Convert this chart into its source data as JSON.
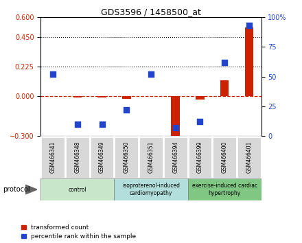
{
  "title": "GDS3596 / 1458500_at",
  "samples": [
    "GSM466341",
    "GSM466348",
    "GSM466349",
    "GSM466350",
    "GSM466351",
    "GSM466394",
    "GSM466399",
    "GSM466400",
    "GSM466401"
  ],
  "transformed_count": [
    0.003,
    -0.01,
    -0.008,
    -0.02,
    0.003,
    -0.34,
    -0.025,
    0.12,
    0.52
  ],
  "percentile_rank_pct": [
    52,
    10,
    10,
    22,
    52,
    7,
    12,
    62,
    93
  ],
  "ylim_left": [
    -0.3,
    0.6
  ],
  "ylim_right": [
    0,
    100
  ],
  "yticks_left": [
    0.6,
    0.45,
    0.225,
    0.0,
    -0.3
  ],
  "yticks_right": [
    100,
    75,
    50,
    25,
    0
  ],
  "hlines": [
    0.225,
    0.45
  ],
  "bar_color": "#cc2200",
  "dot_color": "#2244cc",
  "dashed_color": "#cc2200",
  "group_ranges": [
    [
      0,
      2
    ],
    [
      3,
      5
    ],
    [
      6,
      8
    ]
  ],
  "group_labels": [
    "control",
    "isoproterenol-induced\ncardiomyopathy",
    "exercise-induced cardiac\nhypertrophy"
  ],
  "group_colors": [
    "#c8e6c9",
    "#b2dfdb",
    "#81c784"
  ],
  "protocol_label": "protocol",
  "legend_red": "transformed count",
  "legend_blue": "percentile rank within the sample",
  "bar_width": 0.35,
  "dot_size": 28,
  "sample_box_color": "#d8d8d8",
  "sample_box_edge": "white"
}
